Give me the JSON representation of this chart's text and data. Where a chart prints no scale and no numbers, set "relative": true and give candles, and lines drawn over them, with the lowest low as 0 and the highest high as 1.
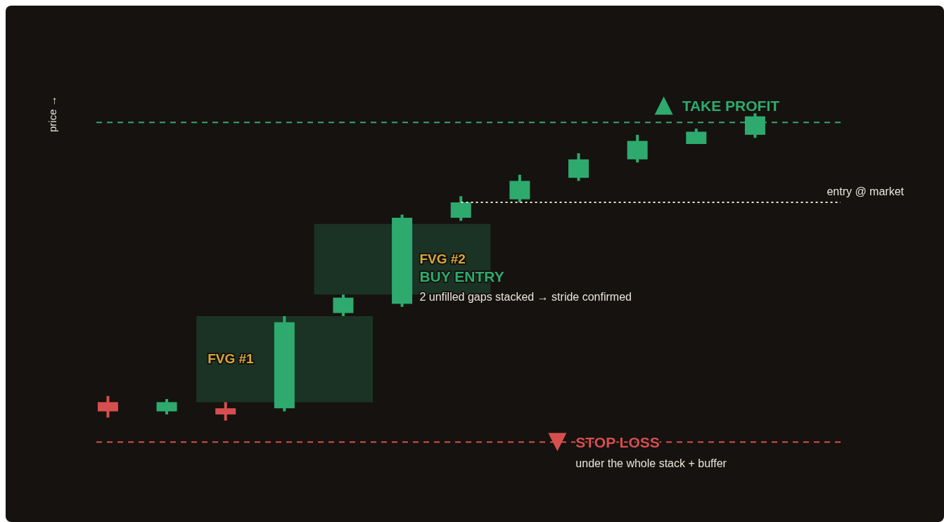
{
  "chart_data": {
    "type": "candlestick",
    "relative": true,
    "tick_labels": false,
    "categories": [
      null,
      null,
      null,
      null,
      null,
      null,
      null,
      null,
      null,
      null,
      null,
      null
    ],
    "ohlc": [
      [
        0.06,
        0.08,
        0.01,
        0.03
      ],
      [
        0.03,
        0.07,
        0.02,
        0.06
      ],
      [
        0.04,
        0.06,
        0,
        0.02
      ],
      [
        0.04,
        0.34,
        0.03,
        0.32
      ],
      [
        0.35,
        0.41,
        0.34,
        0.4
      ],
      [
        0.38,
        0.67,
        0.37,
        0.66
      ],
      [
        0.66,
        0.73,
        0.65,
        0.71
      ],
      [
        0.72,
        0.8,
        0.71,
        0.78
      ],
      [
        0.79,
        0.87,
        0.78,
        0.85
      ],
      [
        0.85,
        0.93,
        0.84,
        0.91
      ],
      [
        0.9,
        0.95,
        0.9,
        0.94
      ],
      [
        0.93,
        1,
        0.92,
        0.99
      ]
    ],
    "colors": [
      "#d64f4f",
      "#2eaa6e",
      "#d64f4f",
      "#2eaa6e",
      "#2eaa6e",
      "#2eaa6e",
      "#2eaa6e",
      "#2eaa6e",
      "#2eaa6e",
      "#2eaa6e",
      "#2eaa6e",
      "#2eaa6e"
    ],
    "ref_lines": [
      {
        "axis": "y",
        "value": 0.97,
        "label": "TAKE PROFIT",
        "color": "#2eaa6e",
        "line_style": "dashed"
      },
      {
        "axis": "y",
        "value": 0.71,
        "label": "entry @ market",
        "color": "#e8e4dc",
        "line_style": "dotted"
      },
      {
        "axis": "y",
        "value": -0.07,
        "label": "STOP LOSS",
        "color": "#d64f4f",
        "line_style": "dashed"
      }
    ],
    "bands": [
      {
        "axis": "y",
        "from": 0.06,
        "to": 0.34,
        "label": "FVG #1",
        "color": "#1b3324"
      },
      {
        "axis": "y",
        "from": 0.41,
        "to": 0.64,
        "label": "FVG #2",
        "color": "#1b3324"
      }
    ],
    "annotations": [
      "BUY ENTRY",
      "2 unfilled gaps stacked → stride confirmed",
      "under the whole stack + buffer",
      "price →"
    ]
  }
}
